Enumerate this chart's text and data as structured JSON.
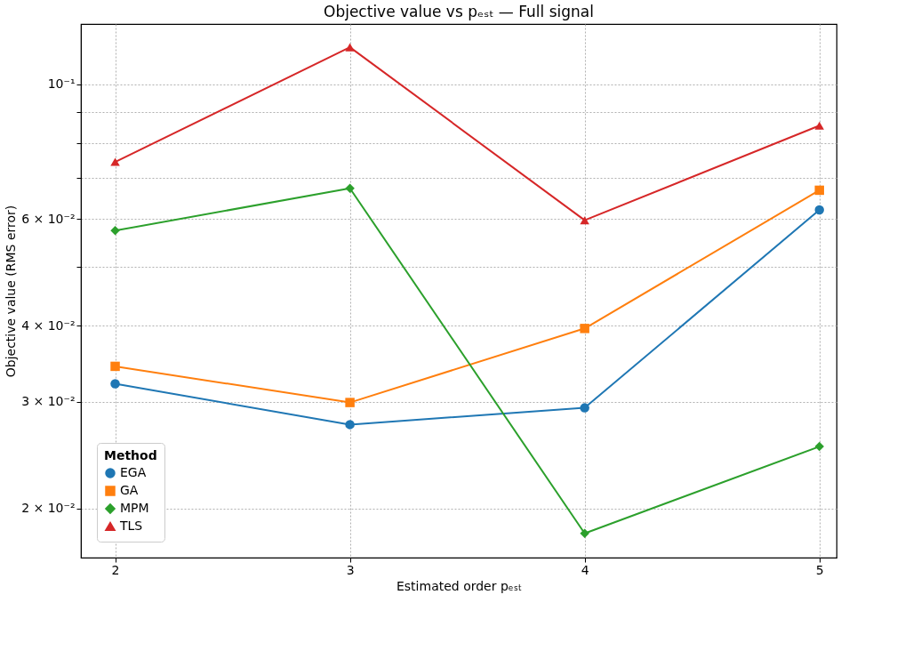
{
  "chart_data": {
    "type": "line",
    "title": "Objective value vs pₑₛₜ — Full signal",
    "xlabel": "Estimated order pₑₛₜ",
    "ylabel": "Objective value (RMS error)",
    "legend_title": "Method",
    "x": [
      2,
      3,
      4,
      5
    ],
    "series": [
      {
        "name": "EGA",
        "color": "#1f77b4",
        "marker": "circle",
        "values": [
          0.0321,
          0.0275,
          0.0293,
          0.0621
        ]
      },
      {
        "name": "GA",
        "color": "#ff7f0e",
        "marker": "square",
        "values": [
          0.0343,
          0.0299,
          0.0396,
          0.0669
        ]
      },
      {
        "name": "MPM",
        "color": "#2ca02c",
        "marker": "diamond",
        "values": [
          0.0574,
          0.0674,
          0.0182,
          0.0253
        ]
      },
      {
        "name": "TLS",
        "color": "#d62728",
        "marker": "triangle",
        "values": [
          0.0745,
          0.1151,
          0.0597,
          0.0855
        ]
      }
    ],
    "log": "y",
    "xlim": [
      1.854,
      5.073
    ],
    "ylim": [
      0.0166,
      0.1257
    ],
    "xticks": [
      2,
      3,
      4,
      5
    ],
    "yticks": [
      {
        "value": 0.02,
        "label": "2 × 10⁻²"
      },
      {
        "value": 0.03,
        "label": "3 × 10⁻²"
      },
      {
        "value": 0.04,
        "label": "4 × 10⁻²"
      },
      {
        "value": 0.05,
        "label": null
      },
      {
        "value": 0.06,
        "label": "6 × 10⁻²"
      },
      {
        "value": 0.07,
        "label": null
      },
      {
        "value": 0.08,
        "label": null
      },
      {
        "value": 0.09,
        "label": null
      },
      {
        "value": 0.1,
        "label": "10⁻¹"
      }
    ],
    "grid": true,
    "line_style": "solid",
    "legend": "bottom left"
  }
}
